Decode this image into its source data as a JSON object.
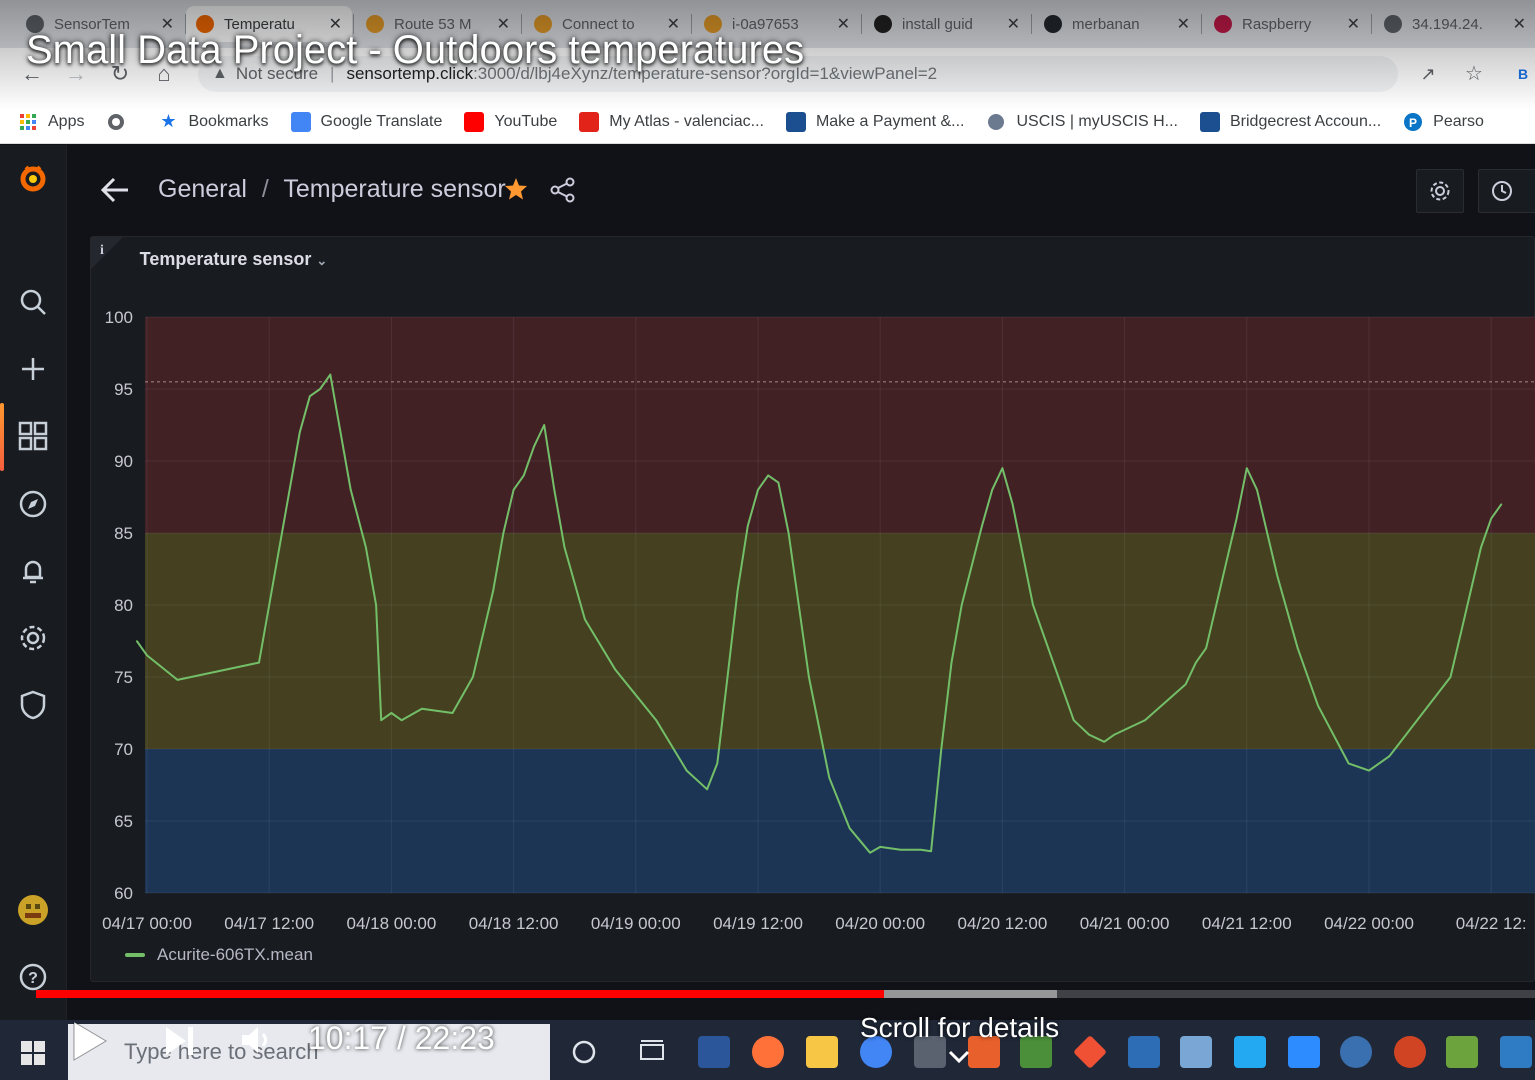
{
  "video": {
    "title": "Small Data Project - Outdoors temperatures",
    "time": "10:17 / 22:23",
    "scroll_hint": "Scroll for details",
    "progress_played": 0.566,
    "progress_buffered": 0.681
  },
  "browser": {
    "tabs": [
      {
        "label": "SensorTem",
        "favicon_color": "#5f6368",
        "active": false
      },
      {
        "label": "Temperatu",
        "favicon_color": "#f46800",
        "active": true
      },
      {
        "label": "Route 53 M",
        "favicon_color": "#e49b29",
        "active": false
      },
      {
        "label": "Connect to",
        "favicon_color": "#e49b29",
        "active": false
      },
      {
        "label": "i-0a97653",
        "favicon_color": "#e49b29",
        "active": false
      },
      {
        "label": "install guid",
        "favicon_color": "#222222",
        "active": false
      },
      {
        "label": "merbanan",
        "favicon_color": "#24292e",
        "active": false
      },
      {
        "label": "Raspberry",
        "favicon_color": "#c51a4a",
        "active": false
      },
      {
        "label": "34.194.24.",
        "favicon_color": "#5f6368",
        "active": false
      }
    ],
    "url_warning": "Not secure",
    "url_host": "sensortemp.click",
    "url_path": ":3000/d/lbj4eXynz/temperature-sensor?orgId=1&viewPanel=2",
    "bookmarks": [
      {
        "label": "Apps",
        "icon": "apps-grid-icon",
        "color": "#4285f4"
      },
      {
        "label": "",
        "icon": "globe-icon",
        "color": "#5f6368"
      },
      {
        "label": "Bookmarks",
        "icon": "star-icon",
        "color": "#1a73e8"
      },
      {
        "label": "Google Translate",
        "icon": "translate-icon",
        "color": "#4285f4"
      },
      {
        "label": "YouTube",
        "icon": "youtube-icon",
        "color": "#ff0000"
      },
      {
        "label": "My Atlas - valenciac...",
        "icon": "atlas-icon",
        "color": "#e2231a"
      },
      {
        "label": "Make a Payment &...",
        "icon": "payment-icon",
        "color": "#1b4f8f"
      },
      {
        "label": "USCIS | myUSCIS H...",
        "icon": "uscis-icon",
        "color": "#6b7a8f"
      },
      {
        "label": "Bridgecrest Accoun...",
        "icon": "bridgecrest-icon",
        "color": "#1b4f8f"
      },
      {
        "label": "Pearso",
        "icon": "pearson-icon",
        "color": "#0a74c6"
      }
    ]
  },
  "grafana": {
    "breadcrumb_folder": "General",
    "breadcrumb_sep": "/",
    "dashboard_title": "Temperature sensor",
    "panel_title": "Temperature sensor",
    "panel_info": "i",
    "legend_label": "Acurite-606TX.mean",
    "series_color": "#73bf69",
    "sidemenu": [
      "grafana-logo-icon",
      "search-icon",
      "plus-icon",
      "dashboards-icon",
      "explore-icon",
      "alerting-icon",
      "config-icon",
      "shield-icon",
      "user-avatar-icon",
      "help-icon"
    ]
  },
  "taskbar": {
    "search_placeholder": "Type here to search"
  },
  "chart_data": {
    "type": "line",
    "title": "Temperature sensor",
    "xlabel": "",
    "ylabel": "",
    "ylim": [
      60,
      100
    ],
    "yticks": [
      100,
      95,
      90,
      85,
      80,
      75,
      70,
      65,
      60
    ],
    "xlim": [
      "04/17 00:00",
      "04/22 15:00"
    ],
    "xtick_labels": [
      "04/17 00:00",
      "04/17 12:00",
      "04/18 00:00",
      "04/18 12:00",
      "04/19 00:00",
      "04/19 12:00",
      "04/20 00:00",
      "04/20 12:00",
      "04/21 00:00",
      "04/21 12:00",
      "04/22 00:00",
      "04/22 12:"
    ],
    "thresholds": [
      {
        "from": 60,
        "to": 70,
        "color": "#1f3a5f"
      },
      {
        "from": 70,
        "to": 85,
        "color": "#4d4720"
      },
      {
        "from": 85,
        "to": 100,
        "color": "#4a2227"
      }
    ],
    "threshold_line": 95.5,
    "grid": true,
    "legend_position": "bottom-left",
    "series": [
      {
        "name": "Acurite-606TX.mean",
        "points": [
          [
            "04/16 23:00",
            77.5
          ],
          [
            "04/17 00:00",
            76.5
          ],
          [
            "04/17 03:00",
            74.8
          ],
          [
            "04/17 11:00",
            76.0
          ],
          [
            "04/17 12:00",
            80.0
          ],
          [
            "04/17 13:00",
            84.0
          ],
          [
            "04/17 14:00",
            88.0
          ],
          [
            "04/17 15:00",
            92.0
          ],
          [
            "04/17 16:00",
            94.5
          ],
          [
            "04/17 17:00",
            95.0
          ],
          [
            "04/17 18:00",
            96.0
          ],
          [
            "04/17 18:30",
            94.0
          ],
          [
            "04/17 20:00",
            88.0
          ],
          [
            "04/17 21:30",
            84.0
          ],
          [
            "04/17 22:30",
            80.0
          ],
          [
            "04/17 23:00",
            72.0
          ],
          [
            "04/18 00:00",
            72.5
          ],
          [
            "04/18 01:00",
            72.0
          ],
          [
            "04/18 03:00",
            72.8
          ],
          [
            "04/18 06:00",
            72.5
          ],
          [
            "04/18 08:00",
            75.0
          ],
          [
            "04/18 09:00",
            78.0
          ],
          [
            "04/18 10:00",
            81.0
          ],
          [
            "04/18 11:00",
            85.0
          ],
          [
            "04/18 12:00",
            88.0
          ],
          [
            "04/18 13:00",
            89.0
          ],
          [
            "04/18 14:00",
            91.0
          ],
          [
            "04/18 15:00",
            92.5
          ],
          [
            "04/18 16:00",
            88.0
          ],
          [
            "04/18 17:00",
            84.0
          ],
          [
            "04/18 19:00",
            79.0
          ],
          [
            "04/18 22:00",
            75.5
          ],
          [
            "04/19 02:00",
            72.0
          ],
          [
            "04/19 05:00",
            68.5
          ],
          [
            "04/19 07:00",
            67.2
          ],
          [
            "04/19 08:00",
            69.0
          ],
          [
            "04/19 09:00",
            75.0
          ],
          [
            "04/19 10:00",
            81.0
          ],
          [
            "04/19 11:00",
            85.5
          ],
          [
            "04/19 12:00",
            88.0
          ],
          [
            "04/19 13:00",
            89.0
          ],
          [
            "04/19 14:00",
            88.5
          ],
          [
            "04/19 15:00",
            85.0
          ],
          [
            "04/19 17:00",
            75.0
          ],
          [
            "04/19 19:00",
            68.0
          ],
          [
            "04/19 21:00",
            64.5
          ],
          [
            "04/19 23:00",
            62.8
          ],
          [
            "04/20 00:00",
            63.2
          ],
          [
            "04/20 02:00",
            63.0
          ],
          [
            "04/20 04:00",
            63.0
          ],
          [
            "04/20 05:00",
            62.9
          ],
          [
            "04/20 06:00",
            70.0
          ],
          [
            "04/20 07:00",
            76.0
          ],
          [
            "04/20 08:00",
            80.0
          ],
          [
            "04/20 10:00",
            85.5
          ],
          [
            "04/20 11:00",
            88.0
          ],
          [
            "04/20 12:00",
            89.5
          ],
          [
            "04/20 13:00",
            87.0
          ],
          [
            "04/20 15:00",
            80.0
          ],
          [
            "04/20 17:00",
            76.0
          ],
          [
            "04/20 19:00",
            72.0
          ],
          [
            "04/20 20:30",
            71.0
          ],
          [
            "04/20 22:00",
            70.5
          ],
          [
            "04/20 23:00",
            71.0
          ],
          [
            "04/21 02:00",
            72.0
          ],
          [
            "04/21 06:00",
            74.5
          ],
          [
            "04/21 07:00",
            76.0
          ],
          [
            "04/21 08:00",
            77.0
          ],
          [
            "04/21 09:00",
            80.0
          ],
          [
            "04/21 10:00",
            83.0
          ],
          [
            "04/21 11:00",
            86.0
          ],
          [
            "04/21 12:00",
            89.5
          ],
          [
            "04/21 13:00",
            88.0
          ],
          [
            "04/21 14:00",
            85.0
          ],
          [
            "04/21 15:00",
            82.0
          ],
          [
            "04/21 17:00",
            77.0
          ],
          [
            "04/21 19:00",
            73.0
          ],
          [
            "04/21 22:00",
            69.0
          ],
          [
            "04/22 00:00",
            68.5
          ],
          [
            "04/22 02:00",
            69.5
          ],
          [
            "04/22 08:00",
            75.0
          ],
          [
            "04/22 09:00",
            78.0
          ],
          [
            "04/22 10:00",
            81.0
          ],
          [
            "04/22 11:00",
            84.0
          ],
          [
            "04/22 12:00",
            86.0
          ],
          [
            "04/22 13:00",
            87.0
          ]
        ]
      }
    ]
  }
}
